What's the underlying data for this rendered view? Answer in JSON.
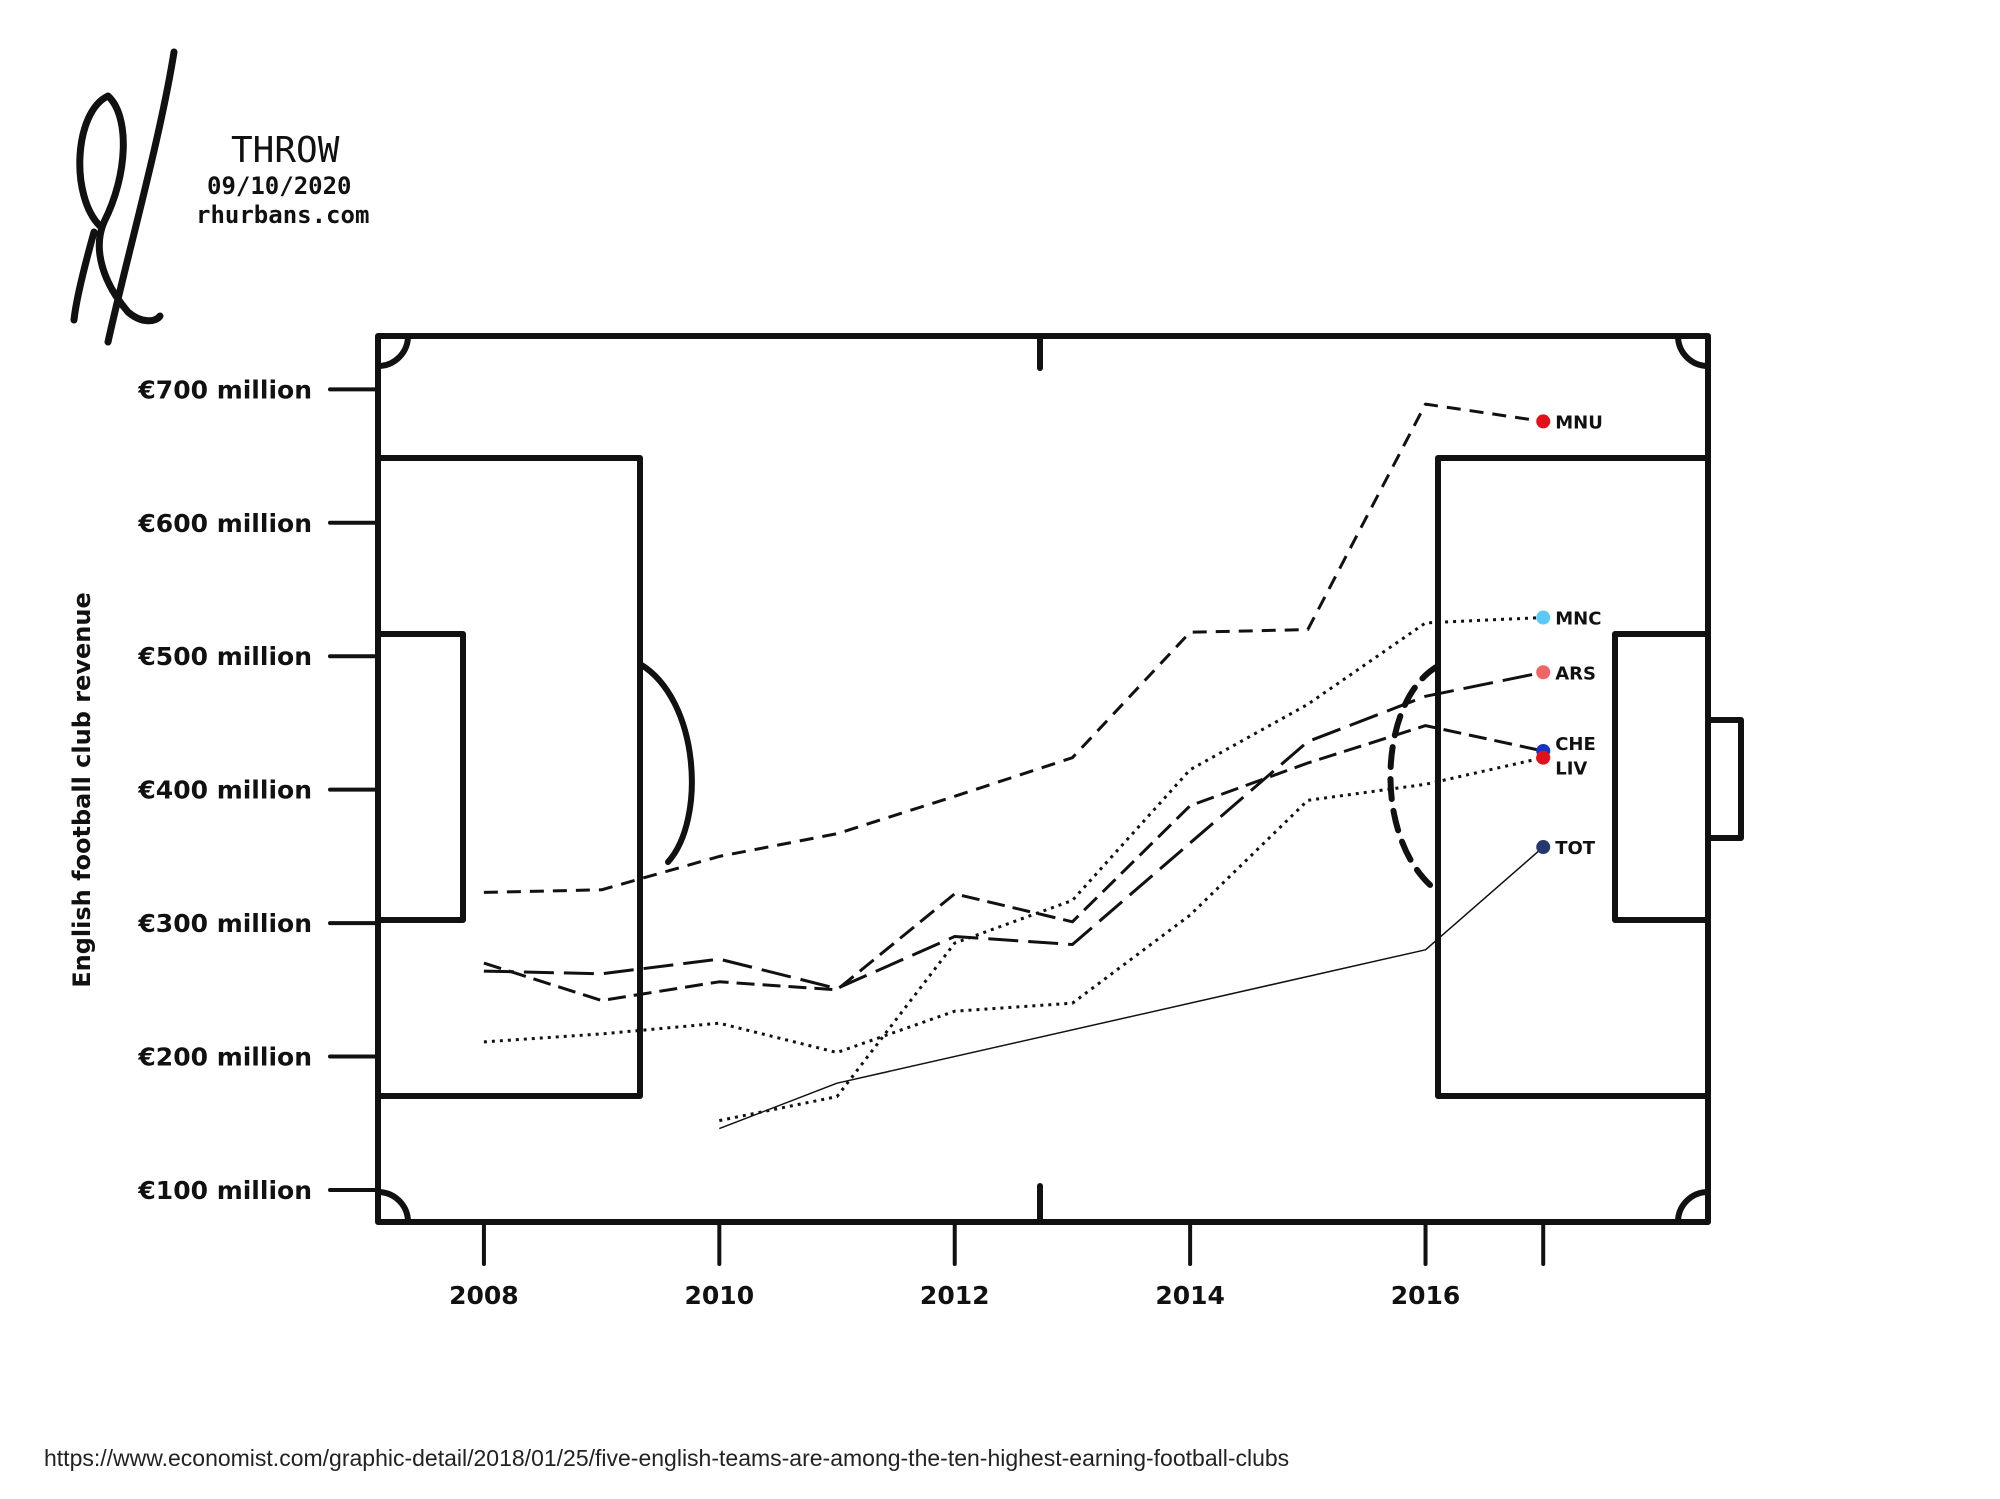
{
  "signature": {
    "name": "THROW",
    "date": "09/10/2020",
    "site": "rhurbans.com"
  },
  "source": "https://www.economist.com/graphic-detail/2018/01/25/five-english-teams-are-among-the-ten-highest-earning-football-clubs",
  "chart_data": {
    "type": "line",
    "title": "",
    "xlabel": "",
    "ylabel": "English football club revenue",
    "xlim": [
      2007.1,
      2018.4
    ],
    "ylim": [
      76,
      740
    ],
    "x_ticks": [
      2008,
      2010,
      2012,
      2014,
      2016
    ],
    "y_ticks": [
      100,
      200,
      300,
      400,
      500,
      600,
      700
    ],
    "y_tick_labels": [
      "€100 million",
      "€200 million",
      "€300 million",
      "€400 million",
      "€500 million",
      "€600 million",
      "€700 million"
    ],
    "background": "football pitch",
    "grid": false,
    "series": [
      {
        "name": "MNU",
        "color": "#e3101a",
        "dash": "14 9",
        "width": 3,
        "x": [
          2008,
          2009,
          2010,
          2011,
          2012,
          2013,
          2014,
          2015,
          2016,
          2017
        ],
        "values": [
          323,
          325,
          350,
          367,
          395,
          424,
          518,
          520,
          689,
          676
        ]
      },
      {
        "name": "MNC",
        "color": "#5bc8f5",
        "dash": "3 5",
        "width": 3,
        "x": [
          2010,
          2011,
          2012,
          2013,
          2014,
          2015,
          2016,
          2017
        ],
        "values": [
          152,
          170,
          285,
          317,
          415,
          464,
          525,
          529
        ]
      },
      {
        "name": "ARS",
        "color": "#f06466",
        "dash": "30 10",
        "width": 3,
        "x": [
          2008,
          2009,
          2010,
          2011,
          2012,
          2013,
          2014,
          2015,
          2016,
          2017
        ],
        "values": [
          264,
          262,
          273,
          251,
          290,
          284,
          360,
          436,
          470,
          488
        ]
      },
      {
        "name": "CHE",
        "color": "#1235c8",
        "dash": "18 8",
        "width": 3,
        "x": [
          2008,
          2009,
          2010,
          2011,
          2012,
          2013,
          2014,
          2015,
          2016,
          2017
        ],
        "values": [
          270,
          242,
          256,
          250,
          322,
          301,
          388,
          420,
          448,
          429
        ]
      },
      {
        "name": "LIV",
        "color": "#e3101a",
        "dash": "3 5",
        "width": 3,
        "x": [
          2008,
          2009,
          2010,
          2011,
          2012,
          2013,
          2014,
          2015,
          2016,
          2017
        ],
        "values": [
          211,
          217,
          225,
          203,
          234,
          240,
          306,
          392,
          404,
          424
        ]
      },
      {
        "name": "TOT",
        "color": "#24376e",
        "dash": "",
        "width": 1.5,
        "x": [
          2010,
          2011,
          2016,
          2017
        ],
        "values": [
          146,
          180,
          280,
          357
        ]
      }
    ]
  }
}
